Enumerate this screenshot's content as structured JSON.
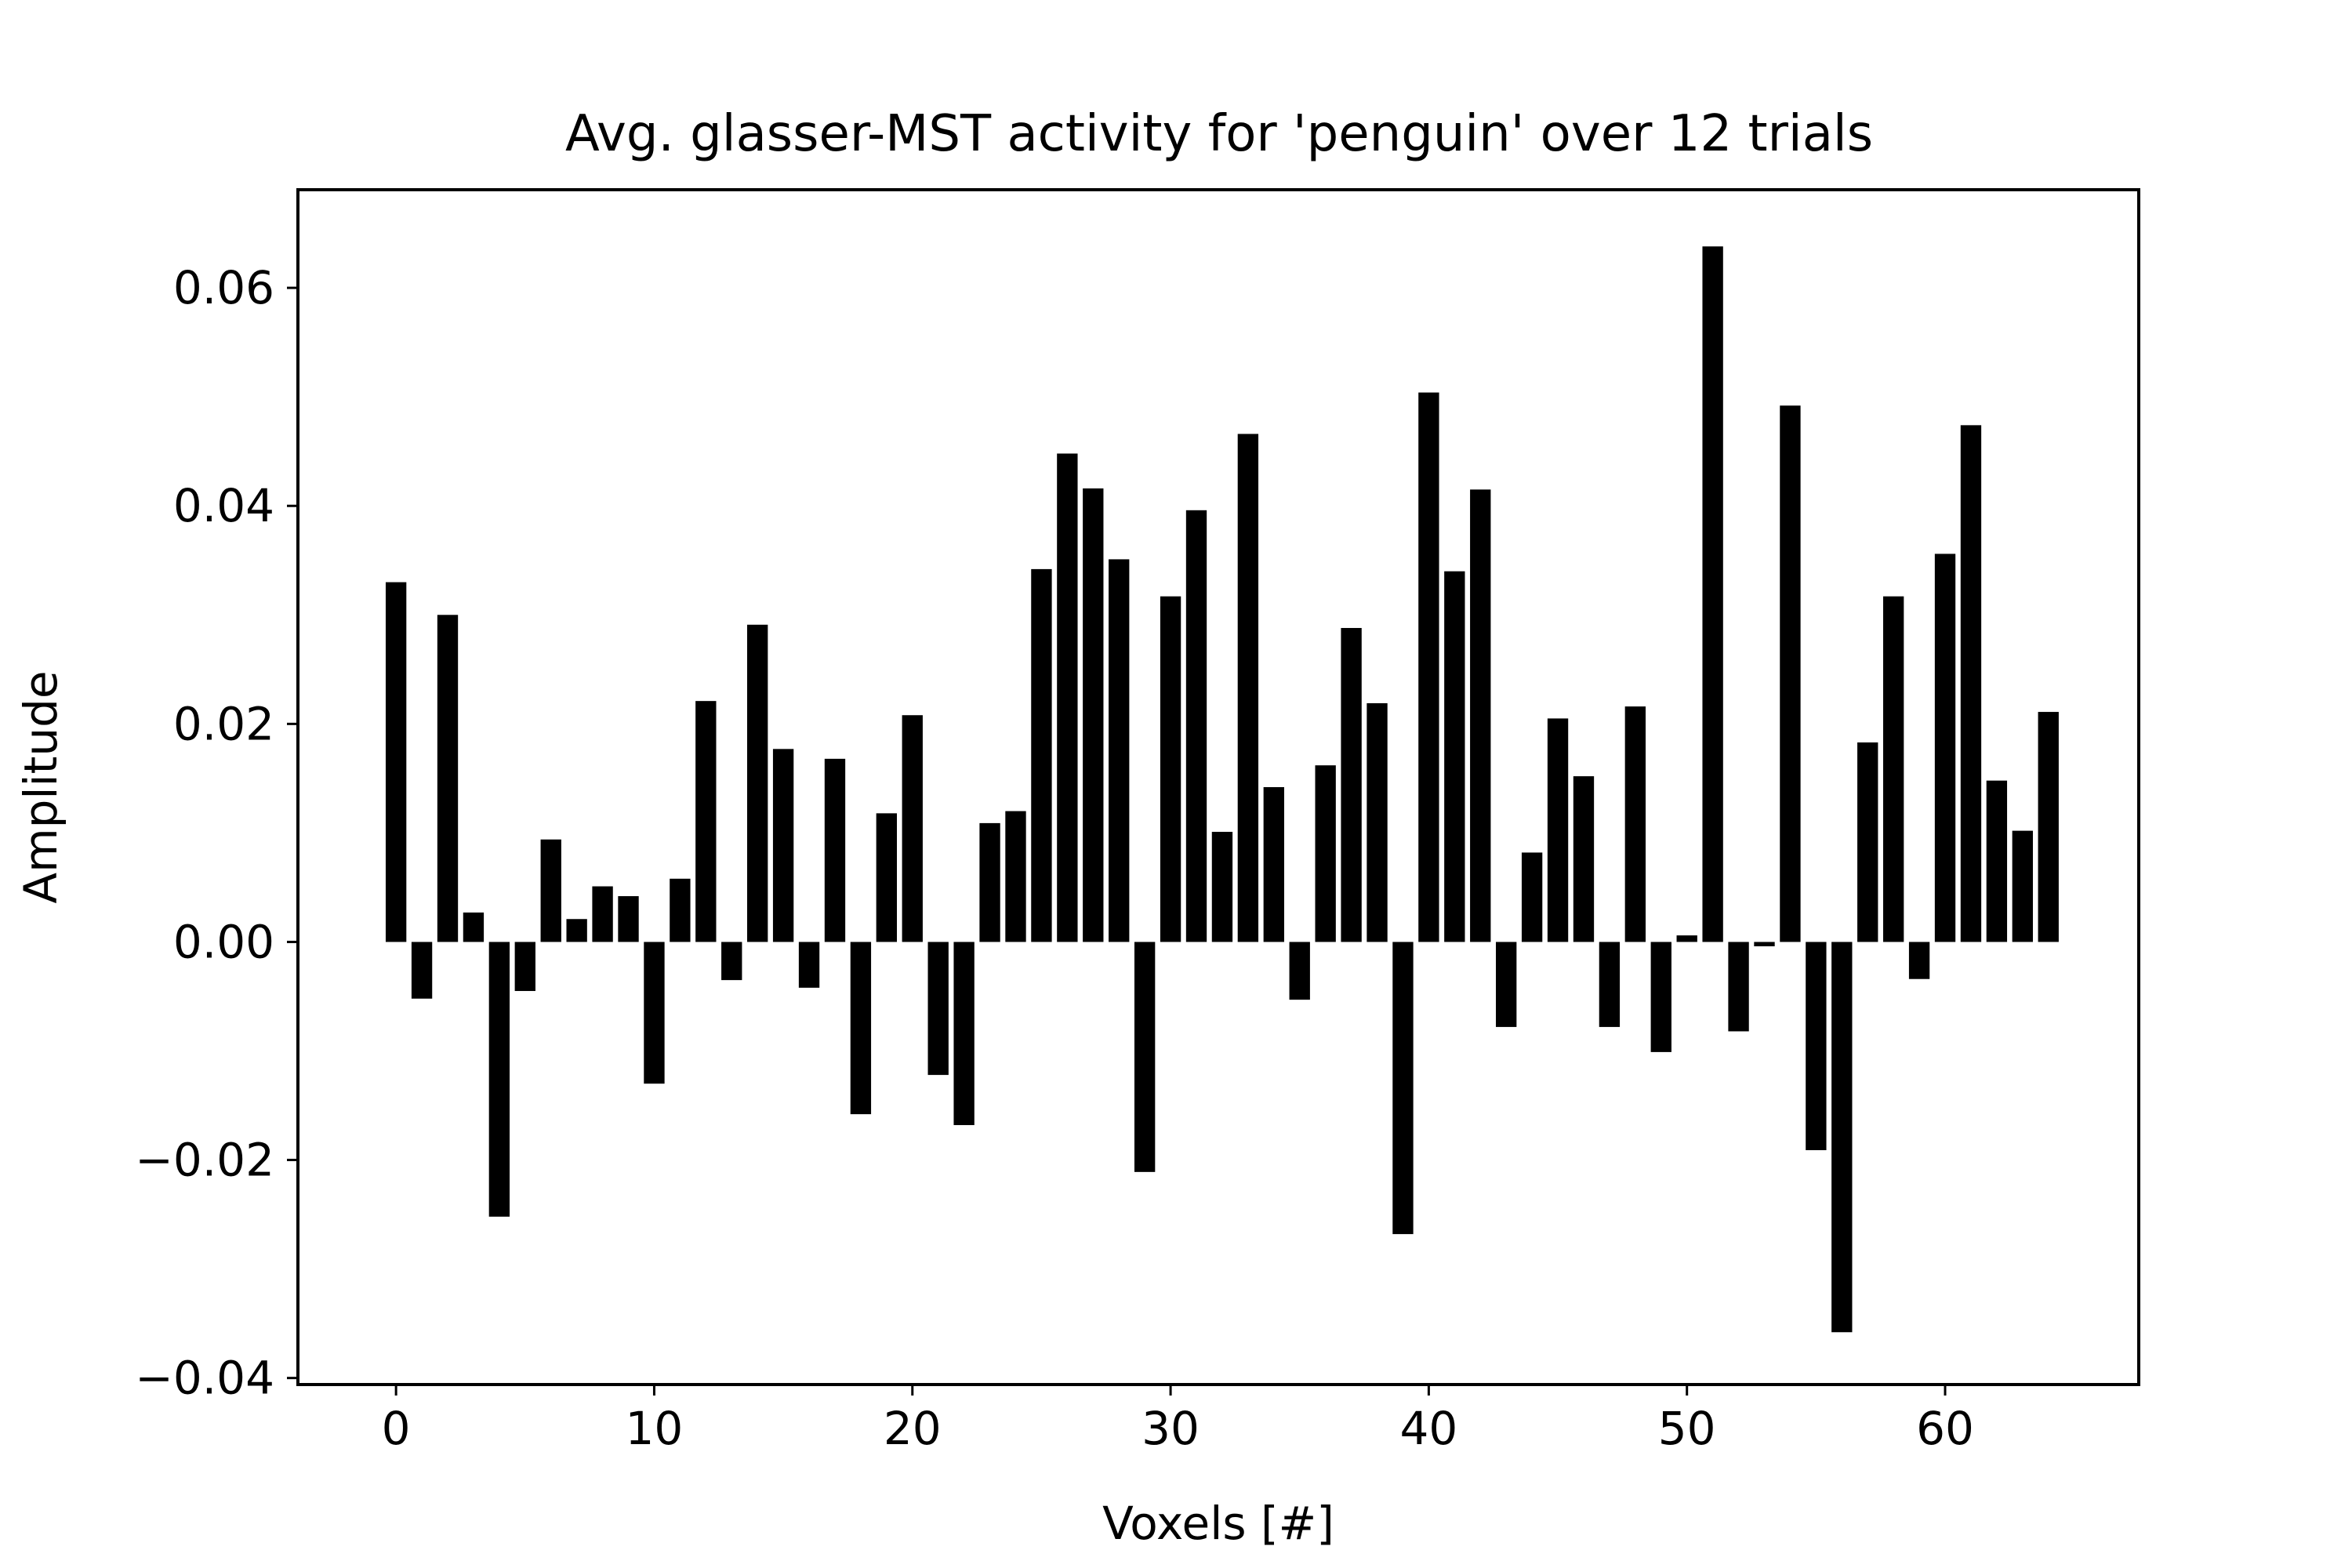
{
  "chart_data": {
    "type": "bar",
    "title": "Avg. glasser-MST activity for 'penguin' over 12 trials",
    "xlabel": "Voxels [#]",
    "ylabel": "Amplitude",
    "x": [
      0,
      1,
      2,
      3,
      4,
      5,
      6,
      7,
      8,
      9,
      10,
      11,
      12,
      13,
      14,
      15,
      16,
      17,
      18,
      19,
      20,
      21,
      22,
      23,
      24,
      25,
      26,
      27,
      28,
      29,
      30,
      31,
      32,
      33,
      34,
      35,
      36,
      37,
      38,
      39,
      40,
      41,
      42,
      43,
      44,
      45,
      46,
      47,
      48,
      49,
      50,
      51,
      52,
      53,
      54,
      55,
      56,
      57,
      58,
      59,
      60,
      61,
      62,
      63,
      64
    ],
    "values": [
      0.033,
      -0.0052,
      0.03,
      0.0027,
      -0.0252,
      -0.0045,
      0.0094,
      0.0021,
      0.0051,
      0.0042,
      -0.013,
      0.0058,
      0.0221,
      -0.0035,
      0.0291,
      0.0177,
      -0.0042,
      0.0168,
      -0.0158,
      0.0118,
      0.0208,
      -0.0122,
      -0.0168,
      0.0109,
      0.012,
      0.0342,
      0.0448,
      0.0416,
      0.0351,
      -0.0211,
      0.0317,
      0.0396,
      0.0101,
      0.0466,
      0.0142,
      -0.0053,
      0.0162,
      0.0288,
      0.0219,
      -0.0268,
      0.0504,
      0.034,
      0.0415,
      -0.0078,
      0.0082,
      0.0205,
      0.0152,
      -0.0078,
      0.0216,
      -0.0101,
      0.0006,
      0.0638,
      -0.0082,
      -0.0004,
      0.0492,
      -0.0191,
      -0.0358,
      0.0183,
      0.0317,
      -0.0034,
      0.0356,
      0.0474,
      0.0148,
      0.0102,
      0.0211
    ],
    "xlim": [
      -3.8,
      67.5
    ],
    "ylim": [
      -0.0406,
      0.069
    ],
    "xticks": [
      0,
      10,
      20,
      30,
      40,
      50,
      60
    ],
    "xtick_labels": [
      "0",
      "10",
      "20",
      "30",
      "40",
      "50",
      "60"
    ],
    "yticks": [
      -0.04,
      -0.02,
      0.0,
      0.02,
      0.04,
      0.06
    ],
    "ytick_labels": [
      "−0.04",
      "−0.02",
      "0.00",
      "0.02",
      "0.04",
      "0.06"
    ],
    "bar_color": "#000000",
    "grid": false,
    "legend": "none"
  }
}
